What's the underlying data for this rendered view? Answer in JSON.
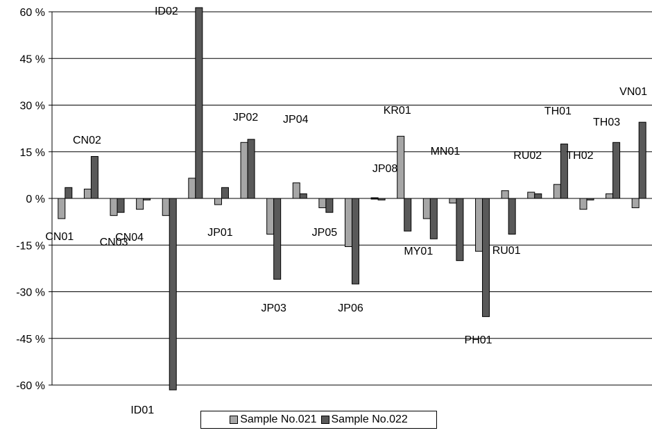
{
  "colors": {
    "series1": "#a6a6a6",
    "series2": "#595959",
    "grid": "#000000"
  },
  "chart_data": {
    "type": "bar",
    "ylim": [
      -60,
      60
    ],
    "yticks": [
      -60,
      -45,
      -30,
      -15,
      0,
      15,
      30,
      45,
      60
    ],
    "ytick_labels": [
      "-60 %",
      "-45 %",
      "-30 %",
      "-15 %",
      "0 %",
      "15 %",
      "30 %",
      "45 %",
      "60 %"
    ],
    "grid": true,
    "legend_position": "bottom",
    "categories": [
      "CN01",
      "CN02",
      "CN03",
      "CN04",
      "ID01",
      "ID02",
      "JP01",
      "JP02",
      "JP03",
      "JP04",
      "JP05",
      "JP06",
      "JP08",
      "KR01",
      "MY01",
      "MN01",
      "PH01",
      "RU01",
      "RU02",
      "TH01",
      "TH02",
      "TH03",
      "VN01"
    ],
    "series": [
      {
        "name": "Sample No.021",
        "values": [
          -6.5,
          3,
          -5.5,
          -3.5,
          -5.5,
          6.5,
          -2,
          18,
          -11.5,
          5,
          -3,
          -15.5,
          0,
          20,
          -6.5,
          -1.5,
          -17,
          2.5,
          2,
          4.5,
          -3.5,
          1.5,
          -3
        ]
      },
      {
        "name": "Sample No.022",
        "values": [
          3.5,
          13.5,
          -4.5,
          -0.5,
          -62,
          62,
          3.5,
          19,
          -26,
          1.5,
          -4.5,
          -27.5,
          -0.5,
          -10.5,
          -13,
          -20,
          -38,
          -11.5,
          1.5,
          17.5,
          -0.5,
          18,
          24.5
        ]
      }
    ]
  }
}
